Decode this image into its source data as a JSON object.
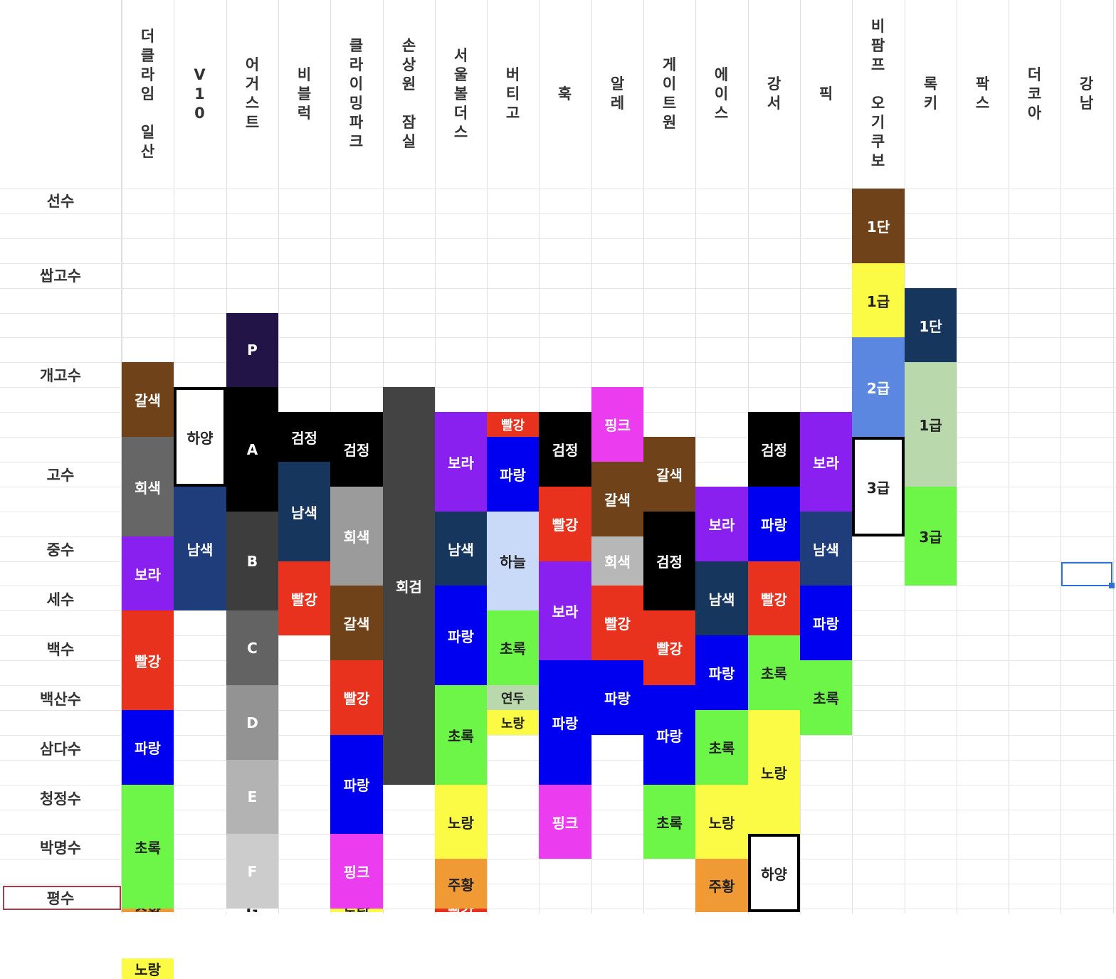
{
  "gyms": [
    {
      "name": "더\n클\n라\n임\n\n일\n산"
    },
    {
      "name": "V\n1\n0"
    },
    {
      "name": "어\n거\n스\n트"
    },
    {
      "name": "비\n블\n럭"
    },
    {
      "name": "클\n라\n이\n밍\n파\n크"
    },
    {
      "name": "손\n상\n원\n\n잠\n실"
    },
    {
      "name": "서\n울\n볼\n더\n스"
    },
    {
      "name": "버\n티\n고"
    },
    {
      "name": "훅"
    },
    {
      "name": "알\n레"
    },
    {
      "name": "게\n이\n트\n원"
    },
    {
      "name": "에\n이\n스"
    },
    {
      "name": "강\n서"
    },
    {
      "name": "픽"
    },
    {
      "name": "비\n팜\n프\n\n오\n기\n쿠\n보"
    },
    {
      "name": "록\n키"
    },
    {
      "name": "팍\n스"
    },
    {
      "name": "더\n코\n아"
    },
    {
      "name": "강\n남"
    }
  ],
  "tiers": [
    "선수",
    "쌉고수",
    "개고수",
    "고수",
    "중수",
    "세수",
    "백수",
    "백산수",
    "삼다수",
    "청정수",
    "박명수",
    "평수"
  ],
  "selected_tier": "평수",
  "grades": [
    {
      "gym": 0,
      "rows": [
        7,
        10
      ],
      "label": "갈색",
      "color": "#70421a",
      "text": "#ffffff"
    },
    {
      "gym": 0,
      "rows": [
        10,
        14
      ],
      "label": "회색",
      "color": "#666666",
      "text": "#ffffff"
    },
    {
      "gym": 0,
      "rows": [
        14,
        17
      ],
      "label": "보라",
      "color": "#8a20ef",
      "text": "#ffffff"
    },
    {
      "gym": 0,
      "rows": [
        17,
        21
      ],
      "label": "빨강",
      "color": "#e8321e",
      "text": "#ffffff"
    },
    {
      "gym": 0,
      "rows": [
        21,
        24
      ],
      "label": "파랑",
      "color": "#0000f0",
      "text": "#ffffff"
    },
    {
      "gym": 0,
      "rows": [
        24,
        29
      ],
      "label": "초록",
      "color": "#6df548",
      "text": "#222222"
    },
    {
      "gym": 0,
      "rows": [
        29,
        31
      ],
      "label": "주황",
      "color": "#ef9a35",
      "text": "#222222"
    },
    {
      "gym": 0,
      "rows": [
        31,
        33
      ],
      "label": "노랑",
      "color": "#fbfb45",
      "text": "#222222"
    },
    {
      "gym": 1,
      "rows": [
        8,
        12
      ],
      "label": "하양",
      "color": "#ffffff",
      "text": "#222222",
      "outlined": true
    },
    {
      "gym": 1,
      "rows": [
        12,
        17
      ],
      "label": "남색",
      "color": "#1f3d7a",
      "text": "#ffffff"
    },
    {
      "gym": 2,
      "rows": [
        5,
        8
      ],
      "label": "P",
      "color": "#221446",
      "text": "#ffffff"
    },
    {
      "gym": 2,
      "rows": [
        8,
        13
      ],
      "label": "A",
      "color": "#000000",
      "text": "#ffffff"
    },
    {
      "gym": 2,
      "rows": [
        13,
        17
      ],
      "label": "B",
      "color": "#3d3d3d",
      "text": "#ffffff"
    },
    {
      "gym": 2,
      "rows": [
        17,
        20
      ],
      "label": "C",
      "color": "#636363",
      "text": "#ffffff"
    },
    {
      "gym": 2,
      "rows": [
        20,
        23
      ],
      "label": "D",
      "color": "#939393",
      "text": "#ffffff"
    },
    {
      "gym": 2,
      "rows": [
        23,
        26
      ],
      "label": "E",
      "color": "#b3b3b3",
      "text": "#ffffff"
    },
    {
      "gym": 2,
      "rows": [
        26,
        29
      ],
      "label": "F",
      "color": "#cccccc",
      "text": "#ffffff"
    },
    {
      "gym": 2,
      "rows": [
        29,
        33
      ],
      "label": "G",
      "color": "#ffffff",
      "text": "#222222"
    },
    {
      "gym": 3,
      "rows": [
        9,
        11
      ],
      "label": "검정",
      "color": "#000000",
      "text": "#ffffff"
    },
    {
      "gym": 3,
      "rows": [
        11,
        15
      ],
      "label": "남색",
      "color": "#17365e",
      "text": "#ffffff"
    },
    {
      "gym": 3,
      "rows": [
        15,
        18
      ],
      "label": "빨강",
      "color": "#e8321e",
      "text": "#ffffff"
    },
    {
      "gym": 4,
      "rows": [
        9,
        12
      ],
      "label": "검정",
      "color": "#000000",
      "text": "#ffffff"
    },
    {
      "gym": 4,
      "rows": [
        12,
        16
      ],
      "label": "회색",
      "color": "#9b9b9b",
      "text": "#ffffff"
    },
    {
      "gym": 4,
      "rows": [
        16,
        19
      ],
      "label": "갈색",
      "color": "#70421a",
      "text": "#ffffff"
    },
    {
      "gym": 4,
      "rows": [
        19,
        22
      ],
      "label": "빨강",
      "color": "#e8321e",
      "text": "#ffffff"
    },
    {
      "gym": 4,
      "rows": [
        22,
        26
      ],
      "label": "파랑",
      "color": "#0000f0",
      "text": "#ffffff"
    },
    {
      "gym": 4,
      "rows": [
        26,
        29
      ],
      "label": "핑크",
      "color": "#eb3def",
      "text": "#ffffff"
    },
    {
      "gym": 4,
      "rows": [
        29,
        31
      ],
      "label": "노랑",
      "color": "#fbfb45",
      "text": "#222222"
    },
    {
      "gym": 5,
      "rows": [
        8,
        24
      ],
      "label": "회검",
      "color": "#434343",
      "text": "#ffffff"
    },
    {
      "gym": 6,
      "rows": [
        9,
        13
      ],
      "label": "보라",
      "color": "#8a20ef",
      "text": "#ffffff"
    },
    {
      "gym": 6,
      "rows": [
        13,
        16
      ],
      "label": "남색",
      "color": "#17365e",
      "text": "#ffffff"
    },
    {
      "gym": 6,
      "rows": [
        16,
        20
      ],
      "label": "파랑",
      "color": "#0000f0",
      "text": "#ffffff"
    },
    {
      "gym": 6,
      "rows": [
        20,
        24
      ],
      "label": "초록",
      "color": "#6df548",
      "text": "#222222"
    },
    {
      "gym": 6,
      "rows": [
        24,
        27
      ],
      "label": "노랑",
      "color": "#fbfb45",
      "text": "#222222"
    },
    {
      "gym": 6,
      "rows": [
        27,
        29
      ],
      "label": "주황",
      "color": "#ef9a35",
      "text": "#222222"
    },
    {
      "gym": 6,
      "rows": [
        29,
        31
      ],
      "label": "빨강",
      "color": "#e8321e",
      "text": "#ffffff"
    },
    {
      "gym": 7,
      "rows": [
        9,
        10
      ],
      "label": "빨강",
      "color": "#e8321e",
      "text": "#ffffff"
    },
    {
      "gym": 7,
      "rows": [
        10,
        13
      ],
      "label": "파랑",
      "color": "#0000f0",
      "text": "#ffffff"
    },
    {
      "gym": 7,
      "rows": [
        13,
        17
      ],
      "label": "하늘",
      "color": "#c9daf8",
      "text": "#222222"
    },
    {
      "gym": 7,
      "rows": [
        17,
        20
      ],
      "label": "초록",
      "color": "#6df548",
      "text": "#222222"
    },
    {
      "gym": 7,
      "rows": [
        20,
        21
      ],
      "label": "연두",
      "color": "#b9d8ac",
      "text": "#222222"
    },
    {
      "gym": 7,
      "rows": [
        21,
        22
      ],
      "label": "노랑",
      "color": "#fbfb45",
      "text": "#222222"
    },
    {
      "gym": 8,
      "rows": [
        9,
        12
      ],
      "label": "검정",
      "color": "#000000",
      "text": "#ffffff"
    },
    {
      "gym": 8,
      "rows": [
        12,
        15
      ],
      "label": "빨강",
      "color": "#e8321e",
      "text": "#ffffff"
    },
    {
      "gym": 8,
      "rows": [
        15,
        19
      ],
      "label": "보라",
      "color": "#8a20ef",
      "text": "#ffffff"
    },
    {
      "gym": 8,
      "rows": [
        19,
        24
      ],
      "label": "파랑",
      "color": "#0000f0",
      "text": "#ffffff"
    },
    {
      "gym": 8,
      "rows": [
        24,
        27
      ],
      "label": "핑크",
      "color": "#eb3def",
      "text": "#ffffff"
    },
    {
      "gym": 9,
      "rows": [
        8,
        11
      ],
      "label": "핑크",
      "color": "#eb3def",
      "text": "#ffffff"
    },
    {
      "gym": 9,
      "rows": [
        11,
        14
      ],
      "label": "갈색",
      "color": "#70421a",
      "text": "#ffffff"
    },
    {
      "gym": 9,
      "rows": [
        14,
        16
      ],
      "label": "회색",
      "color": "#b7b7b7",
      "text": "#ffffff"
    },
    {
      "gym": 9,
      "rows": [
        16,
        19
      ],
      "label": "빨강",
      "color": "#e8321e",
      "text": "#ffffff"
    },
    {
      "gym": 9,
      "rows": [
        19,
        22
      ],
      "label": "파랑",
      "color": "#0000f0",
      "text": "#ffffff"
    },
    {
      "gym": 10,
      "rows": [
        10,
        13
      ],
      "label": "갈색",
      "color": "#70421a",
      "text": "#ffffff"
    },
    {
      "gym": 10,
      "rows": [
        13,
        17
      ],
      "label": "검정",
      "color": "#000000",
      "text": "#ffffff"
    },
    {
      "gym": 10,
      "rows": [
        17,
        20
      ],
      "label": "빨강",
      "color": "#e8321e",
      "text": "#ffffff"
    },
    {
      "gym": 10,
      "rows": [
        20,
        24
      ],
      "label": "파랑",
      "color": "#0000f0",
      "text": "#ffffff"
    },
    {
      "gym": 10,
      "rows": [
        24,
        27
      ],
      "label": "초록",
      "color": "#6df548",
      "text": "#222222"
    },
    {
      "gym": 11,
      "rows": [
        12,
        15
      ],
      "label": "보라",
      "color": "#8a20ef",
      "text": "#ffffff"
    },
    {
      "gym": 11,
      "rows": [
        15,
        18
      ],
      "label": "남색",
      "color": "#17365e",
      "text": "#ffffff"
    },
    {
      "gym": 11,
      "rows": [
        18,
        21
      ],
      "label": "파랑",
      "color": "#0000f0",
      "text": "#ffffff"
    },
    {
      "gym": 11,
      "rows": [
        21,
        24
      ],
      "label": "초록",
      "color": "#6df548",
      "text": "#222222"
    },
    {
      "gym": 11,
      "rows": [
        24,
        27
      ],
      "label": "노랑",
      "color": "#fbfb45",
      "text": "#222222"
    },
    {
      "gym": 11,
      "rows": [
        27,
        30
      ],
      "label": "주황",
      "color": "#ef9a35",
      "text": "#222222"
    },
    {
      "gym": 12,
      "rows": [
        9,
        12
      ],
      "label": "검정",
      "color": "#000000",
      "text": "#ffffff"
    },
    {
      "gym": 12,
      "rows": [
        12,
        15
      ],
      "label": "파랑",
      "color": "#0000f0",
      "text": "#ffffff"
    },
    {
      "gym": 12,
      "rows": [
        15,
        18
      ],
      "label": "빨강",
      "color": "#e8321e",
      "text": "#ffffff"
    },
    {
      "gym": 12,
      "rows": [
        18,
        21
      ],
      "label": "초록",
      "color": "#6df548",
      "text": "#222222"
    },
    {
      "gym": 12,
      "rows": [
        21,
        26
      ],
      "label": "노랑",
      "color": "#fbfb45",
      "text": "#222222"
    },
    {
      "gym": 12,
      "rows": [
        26,
        30
      ],
      "label": "하양",
      "color": "#ffffff",
      "text": "#222222",
      "outlined": true
    },
    {
      "gym": 13,
      "rows": [
        9,
        13
      ],
      "label": "보라",
      "color": "#8a20ef",
      "text": "#ffffff"
    },
    {
      "gym": 13,
      "rows": [
        13,
        16
      ],
      "label": "남색",
      "color": "#1f3d7a",
      "text": "#ffffff"
    },
    {
      "gym": 13,
      "rows": [
        16,
        19
      ],
      "label": "파랑",
      "color": "#0000f0",
      "text": "#ffffff"
    },
    {
      "gym": 13,
      "rows": [
        19,
        22
      ],
      "label": "초록",
      "color": "#6df548",
      "text": "#222222"
    },
    {
      "gym": 14,
      "rows": [
        0,
        3
      ],
      "label": "1단",
      "color": "#70421a",
      "text": "#ffffff"
    },
    {
      "gym": 14,
      "rows": [
        3,
        6
      ],
      "label": "1급",
      "color": "#fbfb45",
      "text": "#222222"
    },
    {
      "gym": 14,
      "rows": [
        6,
        10
      ],
      "label": "2급",
      "color": "#5b87e0",
      "text": "#ffffff"
    },
    {
      "gym": 14,
      "rows": [
        10,
        14
      ],
      "label": "3급",
      "color": "#ffffff",
      "text": "#222222",
      "outlined": true
    },
    {
      "gym": 15,
      "rows": [
        4,
        7
      ],
      "label": "1단",
      "color": "#17365e",
      "text": "#ffffff"
    },
    {
      "gym": 15,
      "rows": [
        7,
        12
      ],
      "label": "1급",
      "color": "#b9d8ac",
      "text": "#222222"
    },
    {
      "gym": 15,
      "rows": [
        12,
        16
      ],
      "label": "3급",
      "color": "#6df548",
      "text": "#222222"
    }
  ]
}
